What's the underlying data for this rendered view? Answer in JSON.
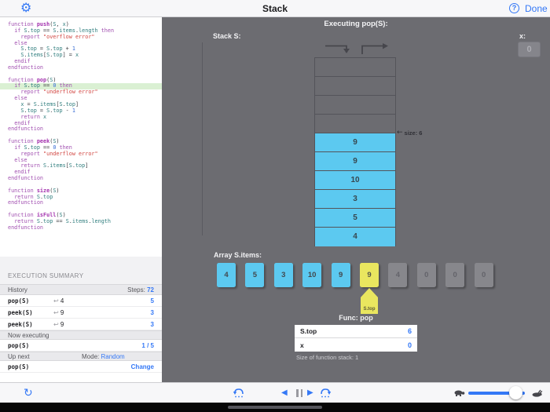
{
  "colors": {
    "accent_blue": "#3478f6",
    "panel_gray": "#6c6c71",
    "cell_blue": "#5cc9f0",
    "cell_yellow": "#e9e65f",
    "cell_inactive": "#87878c",
    "highlight_green": "#daf0d3"
  },
  "topbar": {
    "title": "Stack",
    "help_label": "?",
    "done_label": "Done"
  },
  "code": {
    "highlight_line": 10,
    "lines": [
      "function push(S, x)",
      "  if S.top == S.items.length then",
      "    report \"overflow error\"",
      "  else",
      "    S.top = S.top + 1",
      "    S.items[S.top] = x",
      "  endif",
      "endfunction",
      "",
      "function pop(S)",
      "  if S.top == 0 then",
      "    report \"underflow error\"",
      "  else",
      "    x = S.items[S.top]",
      "    S.top = S.top - 1",
      "    return x",
      "  endif",
      "endfunction",
      "",
      "function peek(S)",
      "  if S.top == 0 then",
      "    report \"underflow error\"",
      "  else",
      "    return S.items[S.top]",
      "  endif",
      "endfunction",
      "",
      "function size(S)",
      "  return S.top",
      "endfunction",
      "",
      "function isFull(S)",
      "  return S.top == S.items.length",
      "endfunction"
    ]
  },
  "summary": {
    "title": "EXECUTION SUMMARY",
    "history_label": "History",
    "steps_label": "Steps:",
    "steps_value": "72",
    "return_symbol": "↩",
    "history_rows": [
      {
        "call": "pop(S)",
        "ret": "4",
        "steps": "5"
      },
      {
        "call": "peek(S)",
        "ret": "9",
        "steps": "3"
      },
      {
        "call": "peek(S)",
        "ret": "9",
        "steps": "3"
      }
    ],
    "now_label": "Now executing",
    "now_call": "pop(S)",
    "now_progress": "1 / 5",
    "next_label": "Up next",
    "mode_label": "Mode:",
    "mode_value": "Random",
    "next_call": "pop(S)",
    "change_label": "Change"
  },
  "stage": {
    "executing_title": "Executing pop(S):",
    "stack_label": "Stack S:",
    "x_label": "x:",
    "x_value": "0",
    "size_label": "size: 6",
    "size_arrow": "←",
    "array_label": "Array S.items:",
    "pointer_label": "S.top",
    "func_title": "Func: pop",
    "func_rows": [
      {
        "label": "S.top",
        "value": "6"
      },
      {
        "label": "x",
        "value": "0"
      }
    ],
    "func_footer": "Size of function stack: 1"
  },
  "stack": {
    "capacity": 10,
    "values_bottom_to_top": [
      "4",
      "5",
      "3",
      "10",
      "9",
      "9"
    ]
  },
  "array": {
    "cells": [
      {
        "value": "4",
        "state": "filled"
      },
      {
        "value": "5",
        "state": "filled"
      },
      {
        "value": "3",
        "state": "filled"
      },
      {
        "value": "10",
        "state": "filled"
      },
      {
        "value": "9",
        "state": "filled"
      },
      {
        "value": "9",
        "state": "top"
      },
      {
        "value": "4",
        "state": "empty"
      },
      {
        "value": "0",
        "state": "empty"
      },
      {
        "value": "0",
        "state": "empty"
      },
      {
        "value": "0",
        "state": "empty"
      }
    ]
  }
}
